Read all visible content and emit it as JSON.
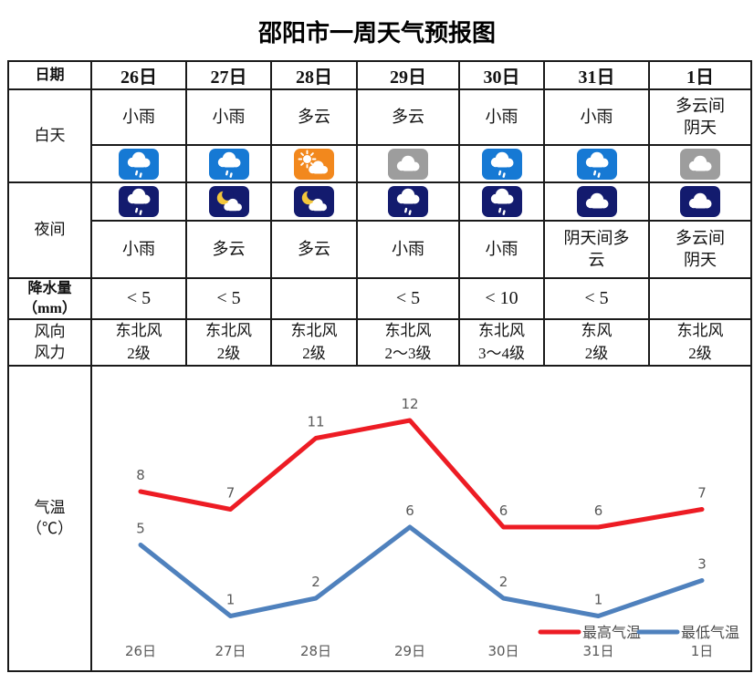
{
  "title": "邵阳市一周天气预报图",
  "table": {
    "row_labels": {
      "date": "日期",
      "day": "白天",
      "night": "夜间",
      "precip": [
        "降水量",
        "（mm）"
      ],
      "wind": [
        "风向",
        "风力"
      ],
      "temp": [
        "气温",
        "（℃）"
      ]
    },
    "dates": [
      "26日",
      "27日",
      "28日",
      "29日",
      "30日",
      "31日",
      "1日"
    ],
    "day": {
      "weather": [
        "小雨",
        "小雨",
        "多云",
        "多云",
        "小雨",
        "小雨",
        "多云间\n阴天"
      ],
      "icons": [
        "rain-day",
        "rain-day",
        "sun-cloud-day",
        "overcast-day",
        "rain-day",
        "rain-day",
        "overcast-day"
      ]
    },
    "night": {
      "icons": [
        "rain-night",
        "moon-cloud-night",
        "moon-cloud-night",
        "rain-night",
        "rain-night",
        "cloud-night",
        "cloud-night"
      ],
      "weather": [
        "小雨",
        "多云",
        "多云",
        "小雨",
        "小雨",
        "阴天间多\n云",
        "多云间\n阴天"
      ]
    },
    "precipitation_mm": [
      "< 5",
      "< 5",
      "",
      "< 5",
      "< 10",
      "< 5",
      ""
    ],
    "wind": [
      [
        "东北风",
        "2级"
      ],
      [
        "东北风",
        "2级"
      ],
      [
        "东北风",
        "2级"
      ],
      [
        "东北风",
        "2～3级"
      ],
      [
        "东北风",
        "3～4级"
      ],
      [
        "东风",
        "2级"
      ],
      [
        "东北风",
        "2级"
      ]
    ]
  },
  "chart_data": {
    "type": "line",
    "x": [
      "26日",
      "27日",
      "28日",
      "29日",
      "30日",
      "31日",
      "1日"
    ],
    "series": [
      {
        "name": "最高气温",
        "color": "#ed1c24",
        "values": [
          8,
          7,
          11,
          12,
          6,
          6,
          7
        ]
      },
      {
        "name": "最低气温",
        "color": "#4f81bd",
        "values": [
          5,
          1,
          2,
          6,
          2,
          1,
          3
        ]
      }
    ],
    "ylabel": "气温（℃）",
    "ylim": [
      0,
      13
    ],
    "grid": false,
    "legend_position": "bottom-right",
    "label_color": "#595959"
  },
  "icon_colors": {
    "day_rain_bg": "#1679d4",
    "day_sun_bg": "#f2881d",
    "day_overcast_bg": "#9d9d9d",
    "night_bg": "#131b6e",
    "moon": "#f3c73b",
    "cloud": "#ffffff"
  }
}
